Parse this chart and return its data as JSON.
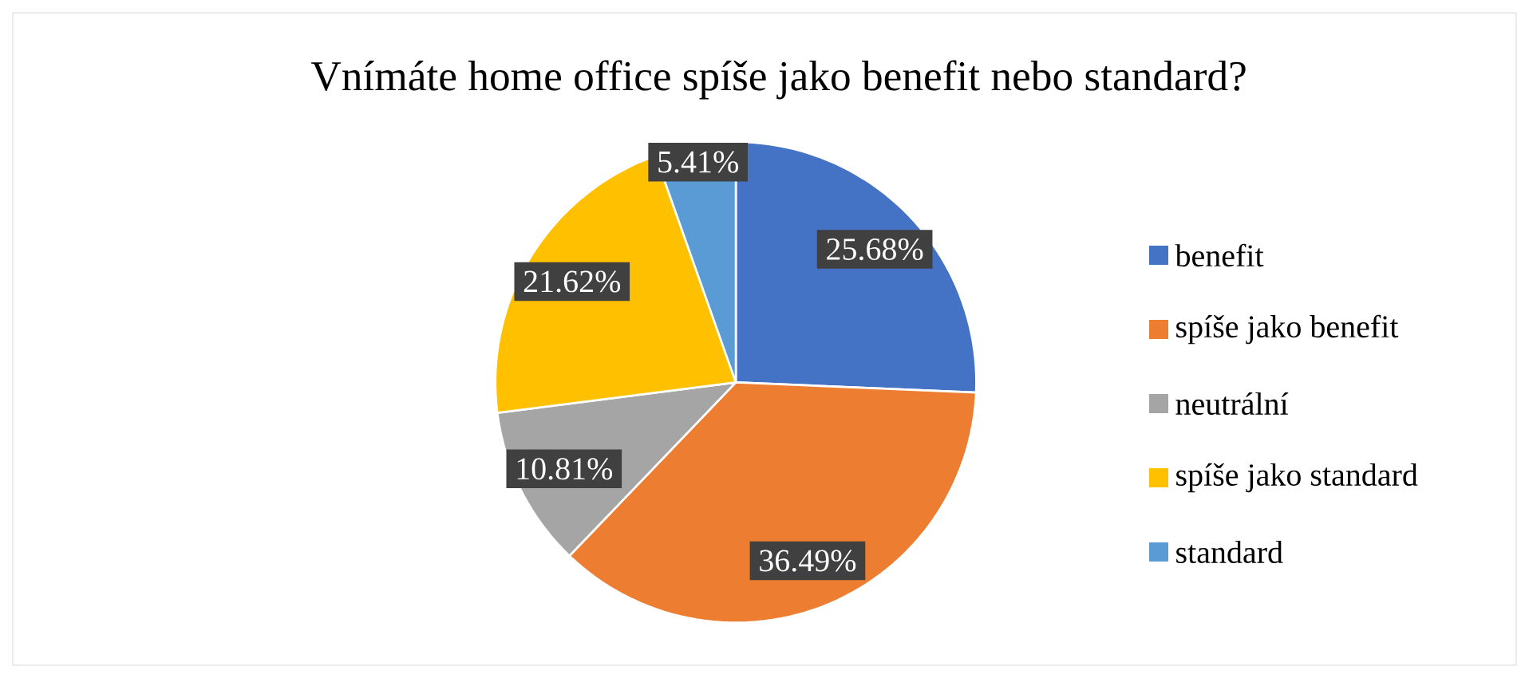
{
  "chart_data": {
    "type": "pie",
    "title": "Vnímáte home office spíše jako benefit nebo standard?",
    "categories": [
      "benefit",
      "spíše jako benefit",
      "neutrální",
      "spíše jako standard",
      "standard"
    ],
    "values": [
      25.68,
      36.49,
      10.81,
      21.62,
      5.41
    ],
    "value_labels": [
      "25.68%",
      "36.49%",
      "10.81%",
      "21.62%",
      "5.41%"
    ],
    "colors": [
      "#4472c4",
      "#ed7d31",
      "#a5a5a5",
      "#ffc000",
      "#5b9bd5"
    ],
    "legend": "right"
  }
}
